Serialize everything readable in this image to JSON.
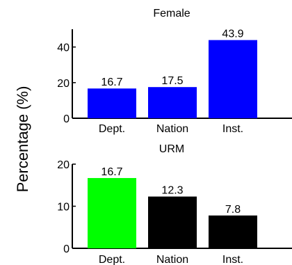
{
  "figure": {
    "ylabel": "Percentage (%)"
  },
  "chart_data": [
    {
      "type": "bar",
      "title": "Female",
      "categories": [
        "Dept.",
        "Nation",
        "Inst."
      ],
      "values": [
        16.7,
        17.5,
        43.9
      ],
      "value_labels": [
        "16.7",
        "17.5",
        "43.9"
      ],
      "colors": [
        "#0000ff",
        "#0000ff",
        "#0000ff"
      ],
      "ylim": [
        0,
        50
      ],
      "yticks": [
        0,
        20,
        40
      ],
      "grid": false
    },
    {
      "type": "bar",
      "title": "URM",
      "categories": [
        "Dept.",
        "Nation",
        "Inst."
      ],
      "values": [
        16.7,
        12.3,
        7.8
      ],
      "value_labels": [
        "16.7",
        "12.3",
        "7.8"
      ],
      "colors": [
        "#00ff00",
        "#000000",
        "#000000"
      ],
      "ylim": [
        0,
        20
      ],
      "yticks": [
        0,
        10,
        20
      ],
      "grid": false
    }
  ]
}
